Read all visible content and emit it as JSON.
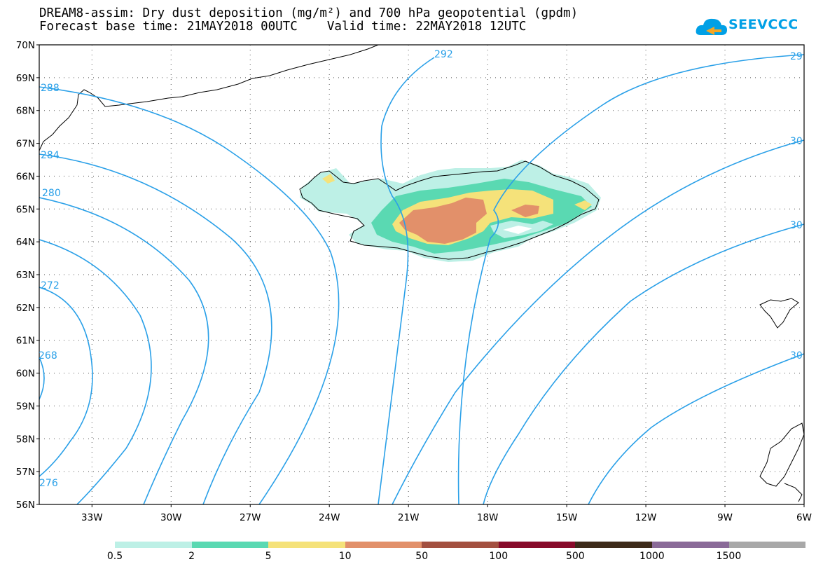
{
  "title": {
    "line1": "DREAM8-assim: Dry dust deposition (mg/m²) and 700 hPa geopotential (gpdm)",
    "line2": "Forecast base time: 21MAY2018 00UTC    Valid time: 22MAY2018 12UTC"
  },
  "logo": {
    "text": "SEEVCCC",
    "icon": "cloud-icon"
  },
  "map": {
    "lat_labels": [
      "70N",
      "69N",
      "68N",
      "67N",
      "66N",
      "65N",
      "64N",
      "63N",
      "62N",
      "61N",
      "60N",
      "59N",
      "58N",
      "57N",
      "56N"
    ],
    "lon_labels": [
      "33W",
      "30W",
      "27W",
      "24W",
      "21W",
      "18W",
      "15W",
      "12W",
      "9W",
      "6W"
    ],
    "lat_range": [
      56,
      70
    ],
    "lon_range": [
      -35,
      -6
    ],
    "grid": "dotted",
    "contour_color": "#2aa0e8",
    "contour_labels": [
      "292",
      "29",
      "30",
      "30",
      "30",
      "288",
      "284",
      "280",
      "272",
      "268",
      "276"
    ]
  },
  "legend": {
    "labels": [
      "0.5",
      "2",
      "5",
      "10",
      "50",
      "100",
      "500",
      "1000",
      "1500"
    ],
    "colors": [
      "#bdf0e6",
      "#5ad9b2",
      "#f5e27a",
      "#e2906a",
      "#a35040",
      "#880a2a",
      "#3d2a1a",
      "#8a6a98",
      "#a8a8a8"
    ]
  }
}
